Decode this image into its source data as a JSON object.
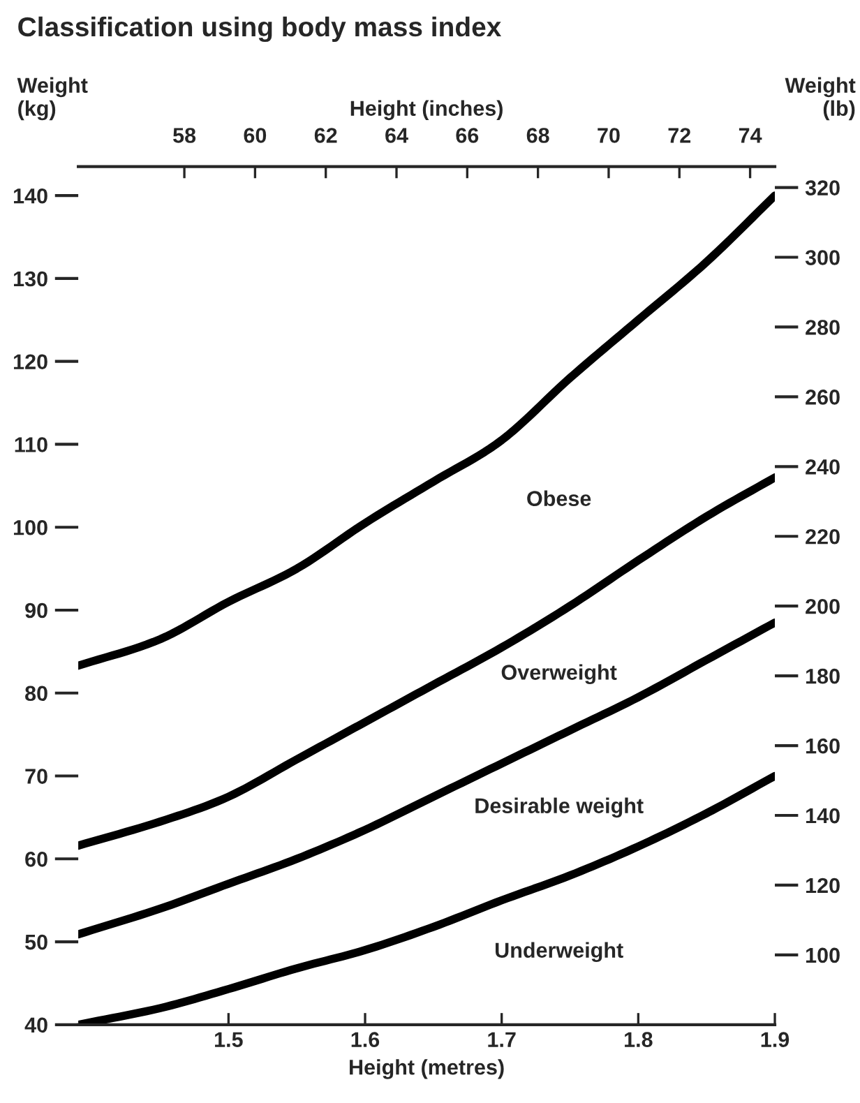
{
  "chart_data": {
    "type": "line",
    "title": "Classification using body mass index",
    "xlabel": "Height (metres)",
    "ylabel": "Weight\n(kg)",
    "y2label": "Weight\n(lb)",
    "x2label": "Height (inches)",
    "x": [
      1.39,
      1.45,
      1.5,
      1.55,
      1.6,
      1.65,
      1.7,
      1.75,
      1.8,
      1.85,
      1.9
    ],
    "series": [
      {
        "color": "#000000",
        "values": [
          83.3,
          86.5,
          91,
          95,
          100.5,
          105.5,
          110.5,
          118,
          125,
          132,
          140
        ]
      },
      {
        "color": "#000000",
        "values": [
          61.6,
          64.5,
          67.5,
          72,
          76.5,
          81,
          85.5,
          90.5,
          96,
          101.3,
          106
        ]
      },
      {
        "color": "#000000",
        "values": [
          50.9,
          54,
          57,
          60,
          63.5,
          67.5,
          71.5,
          75.5,
          79.5,
          84,
          88.5
        ]
      },
      {
        "color": "#000000",
        "values": [
          40,
          42,
          44.3,
          46.8,
          49,
          51.8,
          55,
          58,
          61.5,
          65.5,
          70
        ]
      }
    ],
    "annotations": [
      "Obese",
      "Overweight",
      "Desirable weight",
      "Underweight"
    ],
    "xlim": [
      1.39,
      1.9
    ],
    "xticks": [
      1.5,
      1.6,
      1.7,
      1.8,
      1.9
    ],
    "ylim": [
      40,
      143.5
    ],
    "yticks": [
      40,
      50,
      60,
      70,
      80,
      90,
      100,
      110,
      120,
      130,
      140
    ],
    "y2lim": [
      80,
      326
    ],
    "y2ticks": [
      100,
      120,
      140,
      160,
      180,
      200,
      220,
      240,
      260,
      280,
      300,
      320
    ],
    "x2lim": [
      55,
      74.7
    ],
    "x2ticks": [
      58,
      60,
      62,
      64,
      66,
      68,
      70,
      72,
      74
    ],
    "grid": false,
    "legend": false,
    "marker": "none",
    "line_style": "solid"
  }
}
